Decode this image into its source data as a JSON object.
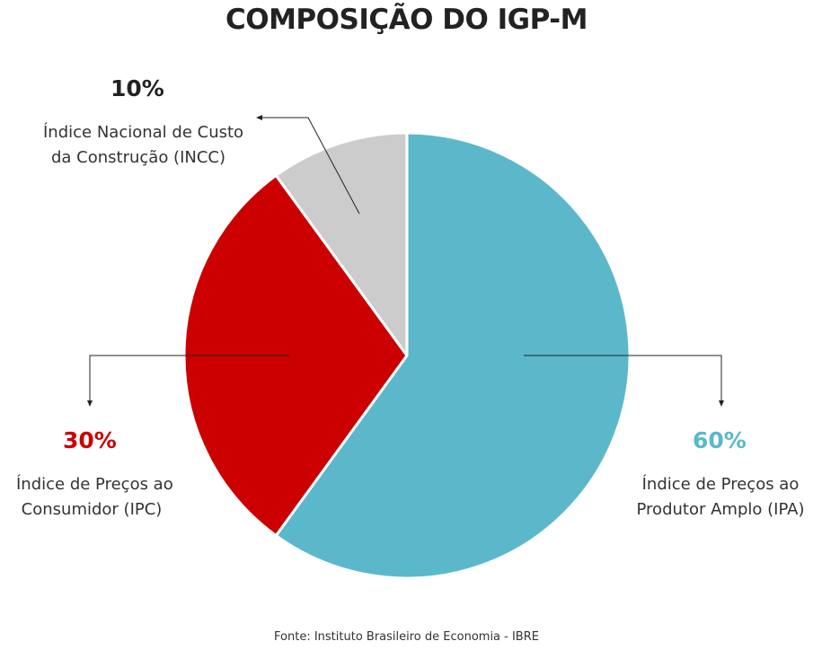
{
  "chart_data": {
    "type": "pie",
    "title": "COMPOSIÇÃO DO IGP-M",
    "slices": [
      {
        "label_line1": "Índice de Preços ao",
        "label_line2": "Produtor Amplo (IPA)",
        "value": 60,
        "value_label": "60%",
        "color": "#5bb8cb"
      },
      {
        "label_line1": "Índice de Preços ao",
        "label_line2": "Consumidor (IPC)",
        "value": 30,
        "value_label": "30%",
        "color": "#cc0000"
      },
      {
        "label_line1": "Índice Nacional de Custo",
        "label_line2": "da Construção (INCC)",
        "value": 10,
        "value_label": "10%",
        "color": "#cccccc"
      }
    ],
    "start_angle": "top",
    "direction": "clockwise",
    "source": "Fonte: Instituto Brasileiro de Economia - IBRE"
  },
  "colors": {
    "title": "#222222",
    "incc_pct": "#222222",
    "ipc_pct": "#cc0000",
    "ipa_pct": "#5bb8cb"
  }
}
